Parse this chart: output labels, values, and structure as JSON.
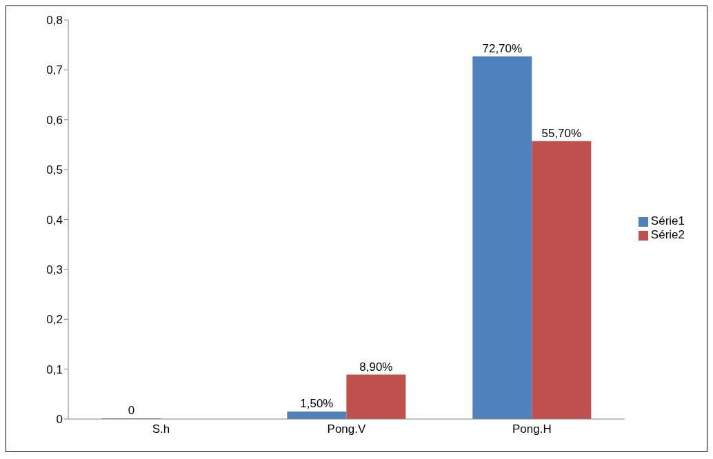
{
  "chart_data": {
    "type": "bar",
    "categories": [
      "S.h",
      "Pong.V",
      "Pong.H"
    ],
    "series": [
      {
        "name": "Série1",
        "color": "#4f81bd",
        "values": [
          0,
          0.015,
          0.727
        ],
        "value_labels": [
          "0",
          "1,50%",
          "72,70%"
        ]
      },
      {
        "name": "Série2",
        "color": "#c0504d",
        "values": [
          0,
          0.089,
          0.557
        ],
        "value_labels": [
          null,
          "8,90%",
          "55,70%"
        ]
      }
    ],
    "ylim": [
      0,
      0.8
    ],
    "yticks": [
      0,
      {
        "value": 0.1,
        "label": "0,1"
      },
      {
        "value": 0.2,
        "label": "0,2"
      },
      {
        "value": 0.3,
        "label": "0,3"
      },
      {
        "value": 0.4,
        "label": "0,4"
      },
      {
        "value": 0.5,
        "label": "0,5"
      },
      {
        "value": 0.6,
        "label": "0,6"
      },
      {
        "value": 0.7,
        "label": "0,7"
      },
      {
        "value": 0.8,
        "label": "0,8"
      }
    ],
    "grid": false,
    "legend": "right"
  }
}
